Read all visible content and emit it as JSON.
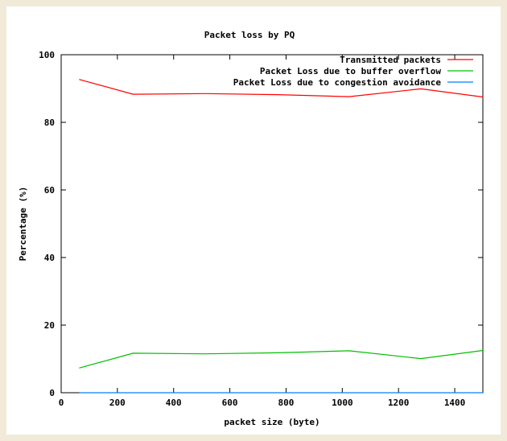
{
  "colors": {
    "background": "#f1ead9",
    "plot_background": "#ffffff",
    "series_1": "#ff0000",
    "series_2": "#00c000",
    "series_3": "#0080ff"
  },
  "chart_data": {
    "type": "line",
    "title": "Packet loss by PQ",
    "xlabel": "packet size (byte)",
    "ylabel": "Percentage (%)",
    "xlim": [
      0,
      1500
    ],
    "ylim": [
      0,
      100
    ],
    "xticks": [
      0,
      200,
      400,
      600,
      800,
      1000,
      1200,
      1400
    ],
    "yticks": [
      0,
      20,
      40,
      60,
      80,
      100
    ],
    "legend_position": "top-right",
    "grid": false,
    "x": [
      64,
      256,
      512,
      768,
      1024,
      1280,
      1500
    ],
    "series": [
      {
        "name": "Transmitted packets",
        "color": "#ff0000",
        "values": [
          92.7,
          88.3,
          88.5,
          88.2,
          87.6,
          89.9,
          87.5
        ]
      },
      {
        "name": "Packet Loss due to buffer overflow",
        "color": "#00c000",
        "values": [
          7.3,
          11.7,
          11.5,
          11.8,
          12.4,
          10.1,
          12.5
        ]
      },
      {
        "name": "Packet Loss due to congestion avoidance",
        "color": "#0080ff",
        "values": [
          0,
          0,
          0,
          0,
          0,
          0,
          0
        ]
      }
    ]
  }
}
